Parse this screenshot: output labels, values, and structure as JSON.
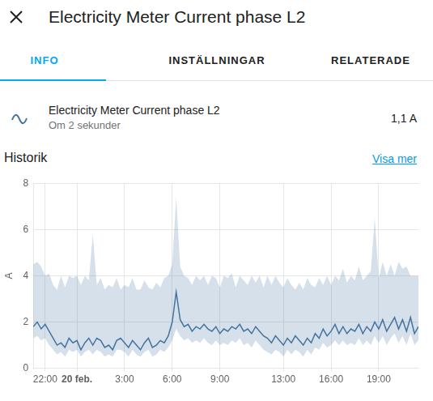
{
  "header": {
    "title": "Electricity Meter Current phase L2"
  },
  "tabs": [
    "INFO",
    "INSTÄLLNINGAR",
    "RELATERADE"
  ],
  "entity": {
    "name": "Electricity Meter Current phase L2",
    "relative_time": "Om 2 sekunder",
    "state": "1,1 A"
  },
  "history": {
    "title": "Historik",
    "link": "Visa mer"
  },
  "chart_data": {
    "type": "line",
    "ylabel": "A",
    "color": "#44739e",
    "grid": true,
    "xlim": [
      -2.75,
      21.5
    ],
    "xticks": [
      {
        "value": -2,
        "label": "22:00"
      },
      {
        "value": 0,
        "label": "20 feb."
      },
      {
        "value": 3,
        "label": "3:00"
      },
      {
        "value": 6,
        "label": "6:00"
      },
      {
        "value": 9,
        "label": "9:00"
      },
      {
        "value": 13,
        "label": "13:00"
      },
      {
        "value": 16,
        "label": "16:00"
      },
      {
        "value": 19,
        "label": "19:00"
      }
    ],
    "ylim": [
      0,
      8
    ],
    "yticks": [
      0,
      2,
      4,
      6,
      8
    ],
    "x": [
      -2.75,
      -2.5,
      -2.25,
      -2,
      -1.75,
      -1.5,
      -1.25,
      -1,
      -0.75,
      -0.5,
      -0.25,
      0,
      0.25,
      0.5,
      0.75,
      1,
      1.25,
      1.5,
      1.75,
      2,
      2.25,
      2.5,
      2.75,
      3,
      3.25,
      3.5,
      3.75,
      4,
      4.25,
      4.5,
      4.75,
      5,
      5.25,
      5.5,
      5.75,
      6,
      6.25,
      6.5,
      6.75,
      7,
      7.25,
      7.5,
      7.75,
      8,
      8.25,
      8.5,
      8.75,
      9,
      9.25,
      9.5,
      9.75,
      10,
      10.25,
      10.5,
      10.75,
      11,
      11.25,
      11.5,
      11.75,
      12,
      12.25,
      12.5,
      12.75,
      13,
      13.25,
      13.5,
      13.75,
      14,
      14.25,
      14.5,
      14.75,
      15,
      15.25,
      15.5,
      15.75,
      16,
      16.25,
      16.5,
      16.75,
      17,
      17.25,
      17.5,
      17.75,
      18,
      18.25,
      18.5,
      18.75,
      19,
      19.25,
      19.5,
      19.75,
      20,
      20.25,
      20.5,
      20.75,
      21,
      21.25,
      21.5
    ],
    "values": [
      1.8,
      2.0,
      1.7,
      1.9,
      1.6,
      1.3,
      1.0,
      1.1,
      0.9,
      1.3,
      1.1,
      1.2,
      0.8,
      1.1,
      1.3,
      1.0,
      1.3,
      1.2,
      0.9,
      1.0,
      0.8,
      1.2,
      1.3,
      1.1,
      0.9,
      1.2,
      1.0,
      0.8,
      1.1,
      1.3,
      0.9,
      1.0,
      1.2,
      1.1,
      1.4,
      2.0,
      3.3,
      2.1,
      1.8,
      1.9,
      1.6,
      1.8,
      1.7,
      1.9,
      1.7,
      1.6,
      1.8,
      1.5,
      1.7,
      1.6,
      1.8,
      1.7,
      1.9,
      1.6,
      1.7,
      1.5,
      1.8,
      1.6,
      1.4,
      1.3,
      1.1,
      1.4,
      1.2,
      1.0,
      1.3,
      1.1,
      1.4,
      1.2,
      1.0,
      1.3,
      1.1,
      1.5,
      1.3,
      1.7,
      1.4,
      1.6,
      1.9,
      1.5,
      1.8,
      1.5,
      1.7,
      1.6,
      1.9,
      1.5,
      1.8,
      1.6,
      2.0,
      1.7,
      2.1,
      1.6,
      1.9,
      2.2,
      1.7,
      2.1,
      1.6,
      2.2,
      1.5,
      1.8
    ],
    "max": [
      4.5,
      4.6,
      4.4,
      4.0,
      4.1,
      3.6,
      3.4,
      4.0,
      3.5,
      4.0,
      3.9,
      4.0,
      3.6,
      4.0,
      3.8,
      5.8,
      3.6,
      3.9,
      3.4,
      3.6,
      3.5,
      3.9,
      3.4,
      3.6,
      3.5,
      3.9,
      3.4,
      3.4,
      3.8,
      3.5,
      3.4,
      3.7,
      3.5,
      3.9,
      4.0,
      4.5,
      7.4,
      4.4,
      4.0,
      3.9,
      3.6,
      4.0,
      3.8,
      4.0,
      3.6,
      4.0,
      3.9,
      3.5,
      4.0,
      3.9,
      4.1,
      3.5,
      4.0,
      3.8,
      3.6,
      4.0,
      3.7,
      4.0,
      3.5,
      4.0,
      3.6,
      4.0,
      3.7,
      3.5,
      3.9,
      3.6,
      3.4,
      3.7,
      3.4,
      3.9,
      3.6,
      3.5,
      3.9,
      3.6,
      4.0,
      3.6,
      4.0,
      3.8,
      4.3,
      3.7,
      4.0,
      3.8,
      4.4,
      3.8,
      4.0,
      4.2,
      6.5,
      3.9,
      4.6,
      4.0,
      4.5,
      4.0,
      4.6,
      4.3,
      4.4,
      4.0,
      4.0,
      4.0
    ],
    "min": [
      1.3,
      1.4,
      1.2,
      1.3,
      1.0,
      0.8,
      0.6,
      0.7,
      0.5,
      0.8,
      0.7,
      0.8,
      0.5,
      0.7,
      0.8,
      0.6,
      0.8,
      0.7,
      0.5,
      0.6,
      0.5,
      0.8,
      0.8,
      0.7,
      0.5,
      0.8,
      0.6,
      0.5,
      0.7,
      0.8,
      0.5,
      0.6,
      0.8,
      0.7,
      0.9,
      1.2,
      1.7,
      1.4,
      1.2,
      1.3,
      1.1,
      1.2,
      1.1,
      1.3,
      1.1,
      1.0,
      1.2,
      1.0,
      1.1,
      1.0,
      1.2,
      1.1,
      1.3,
      1.0,
      1.1,
      0.9,
      1.2,
      1.0,
      0.8,
      0.7,
      0.6,
      0.8,
      0.7,
      0.5,
      0.8,
      0.6,
      0.8,
      0.7,
      0.5,
      0.8,
      0.6,
      0.9,
      0.8,
      1.1,
      0.9,
      1.0,
      1.2,
      1.0,
      1.2,
      1.0,
      1.1,
      1.0,
      1.3,
      1.0,
      1.2,
      1.0,
      1.4,
      1.1,
      1.4,
      1.0,
      1.3,
      1.5,
      1.1,
      1.4,
      1.0,
      1.5,
      1.0,
      1.2
    ]
  }
}
